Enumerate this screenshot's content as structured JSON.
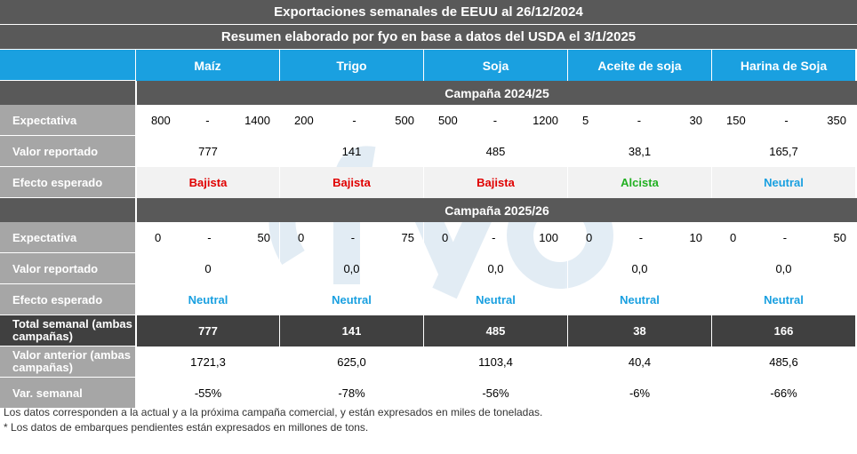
{
  "title": "Exportaciones semanales de EEUU al 26/12/2024",
  "subtitle": "Resumen elaborado por fyo en base a datos del USDA el 3/1/2025",
  "columns": [
    "Maíz",
    "Trigo",
    "Soja",
    "Aceite de soja",
    "Harina de Soja"
  ],
  "labels": {
    "expectativa": "Expectativa",
    "valor_reportado": "Valor reportado",
    "efecto": "Efecto esperado",
    "total": "Total semanal (ambas campañas)",
    "anterior": "Valor anterior (ambas campañas)",
    "var": "Var. semanal"
  },
  "campaign1": {
    "name": "Campaña  2024/25",
    "expect_low": [
      "800",
      "200",
      "500",
      "5",
      "150"
    ],
    "expect_high": [
      "1400",
      "500",
      "1200",
      "30",
      "350"
    ],
    "dash": "-",
    "reported": [
      "777",
      "141",
      "485",
      "38,1",
      "165,7"
    ],
    "effect": [
      "Bajista",
      "Bajista",
      "Bajista",
      "Alcista",
      "Neutral"
    ]
  },
  "campaign2": {
    "name": "Campaña  2025/26",
    "expect_low": [
      "0",
      "0",
      "0",
      "0",
      "0"
    ],
    "expect_high": [
      "50",
      "75",
      "100",
      "10",
      "50"
    ],
    "dash": "-",
    "reported": [
      "0",
      "0,0",
      "0,0",
      "0,0",
      "0,0"
    ],
    "effect": [
      "Neutral",
      "Neutral",
      "Neutral",
      "Neutral",
      "Neutral"
    ]
  },
  "total": [
    "777",
    "141",
    "485",
    "38",
    "166"
  ],
  "anterior": [
    "1721,3",
    "625,0",
    "1103,4",
    "40,4",
    "485,6"
  ],
  "var": [
    "-55%",
    "-78%",
    "-56%",
    "-6%",
    "-66%"
  ],
  "footnotes": [
    "Los datos corresponden a la actual y a la próxima campaña comercial, y están expresados en miles de toneladas.",
    "* Los datos de embarques pendientes están expresados en millones de tons."
  ],
  "colors": {
    "bajista": "#e00000",
    "alcista": "#22b022",
    "neutral": "#1aa0e0",
    "header": "#1aa0e0"
  }
}
